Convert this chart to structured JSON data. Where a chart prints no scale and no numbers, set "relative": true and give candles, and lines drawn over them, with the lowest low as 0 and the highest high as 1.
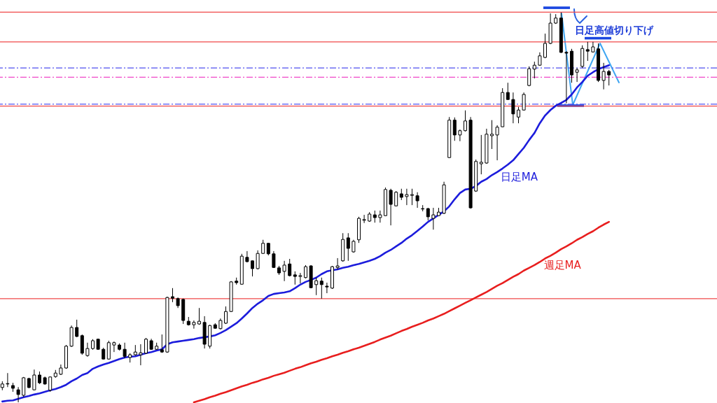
{
  "chart_data": {
    "type": "candlestick",
    "relative": true,
    "categories": [
      null,
      null,
      null,
      null,
      null,
      null,
      null,
      null,
      null,
      null,
      null,
      null,
      null,
      null,
      null,
      null,
      null,
      null,
      null,
      null,
      null,
      null,
      null,
      null,
      null,
      null,
      null,
      null,
      null,
      null,
      null,
      null,
      null,
      null,
      null,
      null,
      null,
      null,
      null,
      null,
      null,
      null,
      null,
      null,
      null,
      null,
      null,
      null,
      null,
      null,
      null,
      null,
      null,
      null,
      null,
      null,
      null,
      null,
      null,
      null,
      null,
      null,
      null,
      null,
      null,
      null,
      null,
      null,
      null,
      null,
      null,
      null,
      null,
      null,
      null,
      null,
      null,
      null,
      null,
      null,
      null,
      null,
      null,
      null,
      null,
      null,
      null,
      null,
      null,
      null,
      null,
      null,
      null,
      null,
      null,
      null,
      null,
      null,
      null,
      null,
      null,
      null,
      null,
      null,
      null,
      null,
      null,
      null,
      null,
      null,
      null,
      null,
      null,
      null,
      null
    ],
    "ohlc": [
      [
        0.038,
        0.054,
        0.031,
        0.047
      ],
      [
        0.048,
        0.075,
        0.039,
        0.047
      ],
      [
        0.043,
        0.05,
        0.027,
        0.036
      ],
      [
        0.032,
        0.039,
        0,
        0.02
      ],
      [
        0.018,
        0.065,
        0.014,
        0.063
      ],
      [
        0.061,
        0.063,
        0.036,
        0.038
      ],
      [
        0.032,
        0.084,
        0.031,
        0.07
      ],
      [
        0.07,
        0.079,
        0.047,
        0.05
      ],
      [
        0.063,
        0.066,
        0.045,
        0.047
      ],
      [
        0.031,
        0.066,
        0.027,
        0.065
      ],
      [
        0.066,
        0.083,
        0.063,
        0.075
      ],
      [
        0.072,
        0.097,
        0.07,
        0.088
      ],
      [
        0.088,
        0.147,
        0.086,
        0.144
      ],
      [
        0.144,
        0.197,
        0.142,
        0.192
      ],
      [
        0.192,
        0.212,
        0.167,
        0.169
      ],
      [
        0.171,
        0.174,
        0.122,
        0.126
      ],
      [
        0.12,
        0.153,
        0.117,
        0.138
      ],
      [
        0.138,
        0.162,
        0.135,
        0.158
      ],
      [
        0.162,
        0.163,
        0.135,
        0.136
      ],
      [
        0.136,
        0.14,
        0.11,
        0.111
      ],
      [
        0.111,
        0.158,
        0.11,
        0.153
      ],
      [
        0.147,
        0.156,
        0.129,
        0.153
      ],
      [
        0.147,
        0.151,
        0.133,
        0.136
      ],
      [
        0.136,
        0.153,
        0.113,
        0.118
      ],
      [
        0.115,
        0.126,
        0.102,
        0.122
      ],
      [
        0.122,
        0.147,
        0.12,
        0.129
      ],
      [
        0.122,
        0.149,
        0.095,
        0.127
      ],
      [
        0.126,
        0.165,
        0.124,
        0.162
      ],
      [
        0.158,
        0.163,
        0.135,
        0.136
      ],
      [
        0.136,
        0.153,
        0.135,
        0.144
      ],
      [
        0.135,
        0.174,
        0.127,
        0.129
      ],
      [
        0.129,
        0.271,
        0.127,
        0.269
      ],
      [
        0.271,
        0.293,
        0.257,
        0.267
      ],
      [
        0.266,
        0.269,
        0.242,
        0.248
      ],
      [
        0.264,
        0.266,
        0.201,
        0.21
      ],
      [
        0.208,
        0.219,
        0.197,
        0.199
      ],
      [
        0.199,
        0.21,
        0.189,
        0.205
      ],
      [
        0.201,
        0.242,
        0.199,
        0.208
      ],
      [
        0.205,
        0.221,
        0.138,
        0.149
      ],
      [
        0.144,
        0.199,
        0.138,
        0.197
      ],
      [
        0.199,
        0.203,
        0.189,
        0.19
      ],
      [
        0.189,
        0.215,
        0.187,
        0.21
      ],
      [
        0.203,
        0.246,
        0.201,
        0.233
      ],
      [
        0.233,
        0.311,
        0.232,
        0.309
      ],
      [
        0.311,
        0.32,
        0.302,
        0.307
      ],
      [
        0.303,
        0.381,
        0.302,
        0.375
      ],
      [
        0.372,
        0.388,
        0.359,
        0.361
      ],
      [
        0.363,
        0.364,
        0.323,
        0.343
      ],
      [
        0.343,
        0.39,
        0.341,
        0.382
      ],
      [
        0.382,
        0.417,
        0.381,
        0.408
      ],
      [
        0.408,
        0.409,
        0.377,
        0.381
      ],
      [
        0.381,
        0.388,
        0.345,
        0.346
      ],
      [
        0.345,
        0.35,
        0.327,
        0.332
      ],
      [
        0.336,
        0.363,
        0.311,
        0.352
      ],
      [
        0.355,
        0.368,
        0.323,
        0.325
      ],
      [
        0.327,
        0.336,
        0.302,
        0.323
      ],
      [
        0.323,
        0.332,
        0.305,
        0.325
      ],
      [
        0.32,
        0.352,
        0.318,
        0.348
      ],
      [
        0.35,
        0.352,
        0.293,
        0.294
      ],
      [
        0.302,
        0.32,
        0.275,
        0.312
      ],
      [
        0.311,
        0.32,
        0.266,
        0.302
      ],
      [
        0.298,
        0.307,
        0.28,
        0.296
      ],
      [
        0.293,
        0.35,
        0.291,
        0.348
      ],
      [
        0.346,
        0.37,
        0.341,
        0.35
      ],
      [
        0.363,
        0.434,
        0.361,
        0.418
      ],
      [
        0.422,
        0.434,
        0.363,
        0.395
      ],
      [
        0.386,
        0.417,
        0.384,
        0.413
      ],
      [
        0.417,
        0.476,
        0.409,
        0.472
      ],
      [
        0.467,
        0.481,
        0.46,
        0.469
      ],
      [
        0.465,
        0.488,
        0.463,
        0.483
      ],
      [
        0.481,
        0.492,
        0.461,
        0.474
      ],
      [
        0.474,
        0.492,
        0.461,
        0.481
      ],
      [
        0.479,
        0.551,
        0.478,
        0.546
      ],
      [
        0.544,
        0.548,
        0.454,
        0.508
      ],
      [
        0.504,
        0.542,
        0.503,
        0.539
      ],
      [
        0.535,
        0.548,
        0.519,
        0.526
      ],
      [
        0.528,
        0.548,
        0.506,
        0.533
      ],
      [
        0.531,
        0.548,
        0.506,
        0.533
      ],
      [
        0.53,
        0.539,
        0.499,
        0.517
      ],
      [
        0.497,
        0.506,
        0.49,
        0.496
      ],
      [
        0.497,
        0.499,
        0.467,
        0.476
      ],
      [
        0.472,
        0.499,
        0.443,
        0.481
      ],
      [
        0.479,
        0.499,
        0.478,
        0.488
      ],
      [
        0.485,
        0.566,
        0.483,
        0.558
      ],
      [
        0.628,
        0.732,
        0.627,
        0.724
      ],
      [
        0.724,
        0.731,
        0.671,
        0.686
      ],
      [
        0.686,
        0.7,
        0.67,
        0.697
      ],
      [
        0.697,
        0.749,
        0.695,
        0.722
      ],
      [
        0.724,
        0.732,
        0.497,
        0.499
      ],
      [
        0.542,
        0.623,
        0.54,
        0.618
      ],
      [
        0.612,
        0.686,
        0.585,
        0.616
      ],
      [
        0.614,
        0.702,
        0.612,
        0.688
      ],
      [
        0.684,
        0.724,
        0.65,
        0.688
      ],
      [
        0.686,
        0.711,
        0.621,
        0.706
      ],
      [
        0.707,
        0.806,
        0.706,
        0.795
      ],
      [
        0.795,
        0.82,
        0.776,
        0.777
      ],
      [
        0.777,
        0.795,
        0.716,
        0.74
      ],
      [
        0.732,
        0.758,
        0.716,
        0.75
      ],
      [
        0.75,
        0.795,
        0.749,
        0.79
      ],
      [
        0.813,
        0.862,
        0.811,
        0.856
      ],
      [
        0.855,
        0.874,
        0.831,
        0.865
      ],
      [
        0.865,
        0.898,
        0.864,
        0.889
      ],
      [
        0.885,
        0.946,
        0.883,
        0.921
      ],
      [
        0.921,
        0.998,
        0.919,
        0.973
      ],
      [
        0.973,
        0.996,
        0.971,
        0.986
      ],
      [
        0.986,
        1,
        0.896,
        0.898
      ],
      [
        0.898,
        0.901,
        0.767,
        0.896
      ],
      [
        0.901,
        0.907,
        0.82,
        0.84
      ],
      [
        0.847,
        0.858,
        0.822,
        0.853
      ],
      [
        0.862,
        0.916,
        0.858,
        0.908
      ],
      [
        0.905,
        0.925,
        0.876,
        0.901
      ],
      [
        0.899,
        0.925,
        0.898,
        0.912
      ],
      [
        0.907,
        0.921,
        0.822,
        0.826
      ],
      [
        0.826,
        0.871,
        0.803,
        0.849
      ],
      [
        0.849,
        0.853,
        0.813,
        0.84
      ]
    ],
    "series": [
      {
        "name": "日足MA",
        "type": "line",
        "color": "#1c1cdc",
        "values": [
          0.002,
          0.004,
          0.005,
          0.009,
          0.013,
          0.016,
          0.02,
          0.023,
          0.027,
          0.031,
          0.034,
          0.039,
          0.045,
          0.054,
          0.061,
          0.07,
          0.075,
          0.086,
          0.092,
          0.097,
          0.101,
          0.106,
          0.111,
          0.115,
          0.117,
          0.118,
          0.122,
          0.126,
          0.129,
          0.133,
          0.136,
          0.149,
          0.154,
          0.156,
          0.158,
          0.16,
          0.162,
          0.165,
          0.167,
          0.169,
          0.172,
          0.178,
          0.185,
          0.194,
          0.203,
          0.215,
          0.228,
          0.242,
          0.253,
          0.262,
          0.273,
          0.278,
          0.28,
          0.282,
          0.285,
          0.293,
          0.302,
          0.309,
          0.314,
          0.32,
          0.329,
          0.336,
          0.339,
          0.341,
          0.345,
          0.348,
          0.352,
          0.355,
          0.359,
          0.363,
          0.368,
          0.375,
          0.384,
          0.391,
          0.4,
          0.409,
          0.42,
          0.429,
          0.44,
          0.451,
          0.463,
          0.472,
          0.481,
          0.49,
          0.503,
          0.521,
          0.537,
          0.546,
          0.548,
          0.555,
          0.566,
          0.573,
          0.583,
          0.591,
          0.6,
          0.61,
          0.621,
          0.637,
          0.653,
          0.673,
          0.691,
          0.716,
          0.736,
          0.75,
          0.761,
          0.768,
          0.776,
          0.79,
          0.808,
          0.822,
          0.838,
          0.847,
          0.855,
          0.86,
          0.865
        ]
      },
      {
        "name": "週足MA",
        "type": "line",
        "color": "#e81e1e",
        "values": [
          null,
          null,
          null,
          null,
          null,
          null,
          null,
          null,
          null,
          null,
          null,
          null,
          null,
          null,
          null,
          null,
          null,
          null,
          null,
          null,
          null,
          null,
          null,
          null,
          null,
          null,
          null,
          null,
          null,
          null,
          null,
          null,
          null,
          null,
          null,
          null,
          0.0,
          0.004,
          0.008,
          0.013,
          0.017,
          0.022,
          0.026,
          0.031,
          0.036,
          0.041,
          0.045,
          0.05,
          0.054,
          0.059,
          0.063,
          0.068,
          0.072,
          0.076,
          0.081,
          0.086,
          0.09,
          0.095,
          0.1,
          0.104,
          0.109,
          0.113,
          0.118,
          0.122,
          0.127,
          0.131,
          0.136,
          0.14,
          0.145,
          0.15,
          0.155,
          0.161,
          0.166,
          0.171,
          0.177,
          0.183,
          0.188,
          0.194,
          0.199,
          0.204,
          0.21,
          0.215,
          0.221,
          0.227,
          0.234,
          0.241,
          0.248,
          0.255,
          0.262,
          0.269,
          0.276,
          0.283,
          0.291,
          0.299,
          0.306,
          0.314,
          0.322,
          0.329,
          0.338,
          0.345,
          0.352,
          0.36,
          0.369,
          0.376,
          0.384,
          0.393,
          0.4,
          0.408,
          0.417,
          0.424,
          0.432,
          0.439,
          0.448,
          0.456,
          0.463
        ]
      }
    ],
    "ref_lines": [
      {
        "axis": "y",
        "value": 1.001,
        "color": "#f04848",
        "line_style": "solid"
      },
      {
        "axis": "y",
        "value": 0.925,
        "color": "#f04848",
        "line_style": "solid"
      },
      {
        "axis": "y",
        "value": 0.858,
        "color": "#5050f0",
        "line_style": "dashed"
      },
      {
        "axis": "y",
        "value": 0.834,
        "color": "#f048c8",
        "line_style": "dashed"
      },
      {
        "axis": "y",
        "value": 0.765,
        "color": "#5050f0",
        "line_style": "dashed"
      },
      {
        "axis": "y",
        "value": 0.76,
        "color": "#f04848",
        "line_style": "solid"
      },
      {
        "axis": "y",
        "value": 0.266,
        "color": "#f04848",
        "line_style": "solid"
      }
    ],
    "annotations": [
      "日足高値切り下げ"
    ]
  }
}
